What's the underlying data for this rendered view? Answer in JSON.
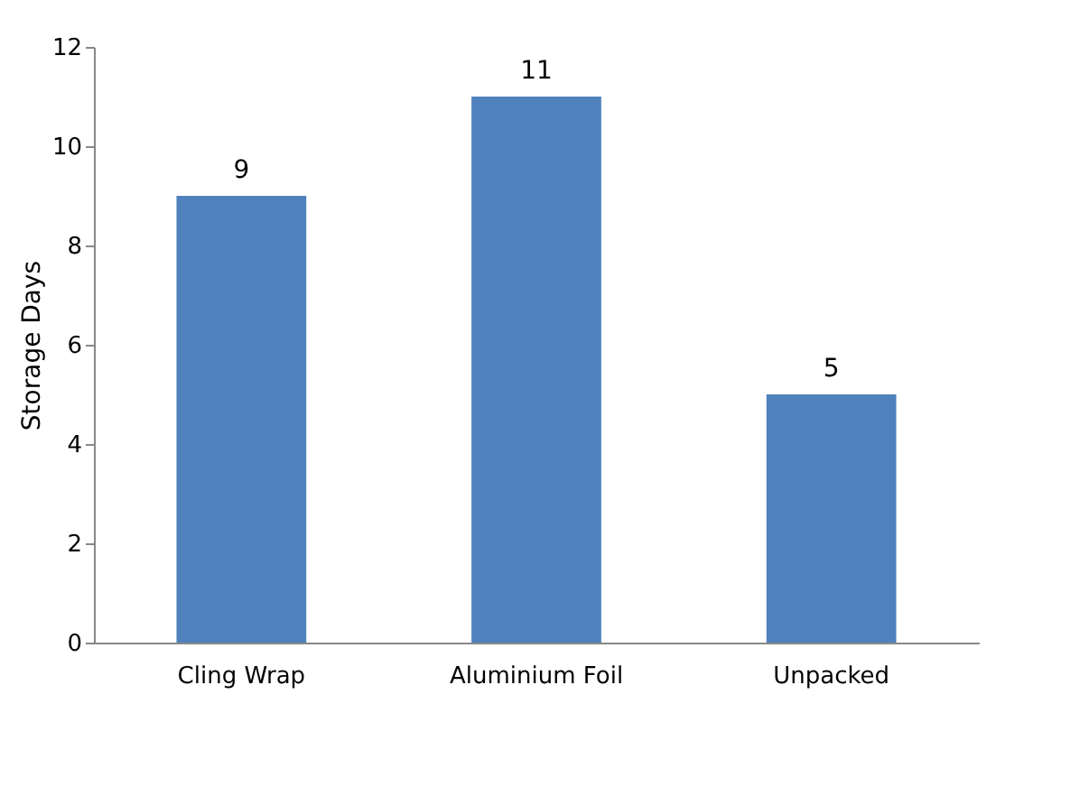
{
  "chart_data": {
    "type": "bar",
    "ylabel": "Storage Days",
    "categories": [
      "Cling Wrap",
      "Aluminium Foil",
      "Unpacked"
    ],
    "values": [
      9,
      11,
      5
    ],
    "color": "#4f81bd",
    "ylim": [
      0,
      12
    ],
    "yticks": [
      0,
      2,
      4,
      6,
      8,
      10,
      12
    ],
    "grid": false,
    "data_labels": true
  }
}
